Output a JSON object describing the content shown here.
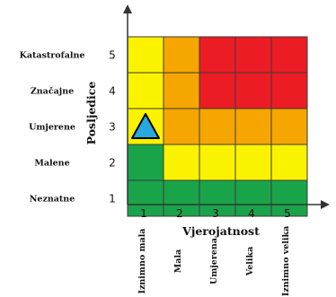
{
  "chart_data": {
    "type": "heatmap",
    "xlabel": "Vjerojatnost",
    "ylabel": "Posljedice",
    "x_ticks": [
      "1",
      "2",
      "3",
      "4",
      "5"
    ],
    "y_ticks": [
      "1",
      "2",
      "3",
      "4",
      "5"
    ],
    "x_categories": [
      "Iznimno mala",
      "Mala",
      "Umjerena",
      "Velika",
      "Iznimno velika"
    ],
    "y_categories": [
      "Neznatne",
      "Malene",
      "Umjerene",
      "Značajne",
      "Katastrofalne"
    ],
    "colors": {
      "green": "#1aa44a",
      "yellow": "#fbf200",
      "orange": "#f5a600",
      "red": "#ec1c24",
      "marker": "#29a8e0"
    },
    "grid": [
      [
        "green",
        "green",
        "green",
        "green",
        "green"
      ],
      [
        "green",
        "yellow",
        "yellow",
        "yellow",
        "yellow"
      ],
      [
        "yellow",
        "orange",
        "orange",
        "orange",
        "orange"
      ],
      [
        "yellow",
        "orange",
        "red",
        "red",
        "red"
      ],
      [
        "yellow",
        "orange",
        "red",
        "red",
        "red"
      ]
    ],
    "marker": {
      "shape": "triangle",
      "x": 1,
      "y": 3
    }
  }
}
